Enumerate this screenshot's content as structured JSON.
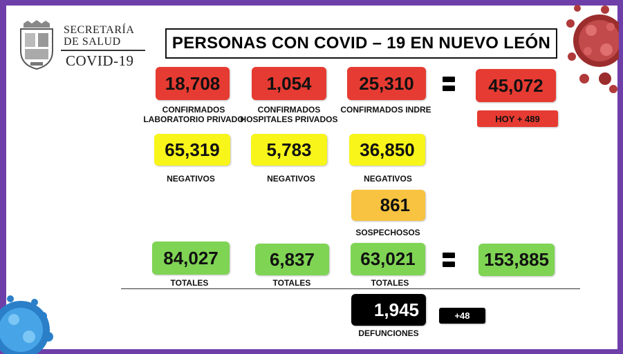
{
  "logo": {
    "line1": "SECRETARÍA",
    "line2": "DE SALUD",
    "line3": "COVID-19"
  },
  "title": "PERSONAS CON COVID – 19 EN NUEVO LEÓN",
  "confirmed": {
    "privado": {
      "value": "18,708",
      "label_1": "CONFIRMADOS",
      "label_2": "LABORATORIO PRIVADO"
    },
    "hospitales": {
      "value": "1,054",
      "label_1": "CONFIRMADOS",
      "label_2": "HOSPITALES PRIVADOS"
    },
    "indre": {
      "value": "25,310",
      "label": "CONFIRMADOS INDRE"
    },
    "total": {
      "value": "45,072",
      "today": "HOY + 489"
    }
  },
  "negatives": {
    "privado": {
      "value": "65,319",
      "label": "NEGATIVOS"
    },
    "hospitales": {
      "value": "5,783",
      "label": "NEGATIVOS"
    },
    "indre": {
      "value": "36,850",
      "label": "NEGATIVOS"
    }
  },
  "suspects": {
    "value": "861",
    "label": "SOSPECHOSOS"
  },
  "totals": {
    "privado": {
      "value": "84,027",
      "label": "TOTALES"
    },
    "hospitales": {
      "value": "6,837",
      "label": "TOTALES"
    },
    "indre": {
      "value": "63,021",
      "label": "TOTALES"
    },
    "grand": {
      "value": "153,885"
    }
  },
  "deaths": {
    "value": "1,945",
    "label": "DEFUNCIONES",
    "today": "+48"
  },
  "colors": {
    "frame": "#6e3fa8",
    "confirmed": "#e63b32",
    "negative": "#f8f51a",
    "suspect": "#f8c340",
    "total": "#7fd454",
    "death": "#000000"
  }
}
